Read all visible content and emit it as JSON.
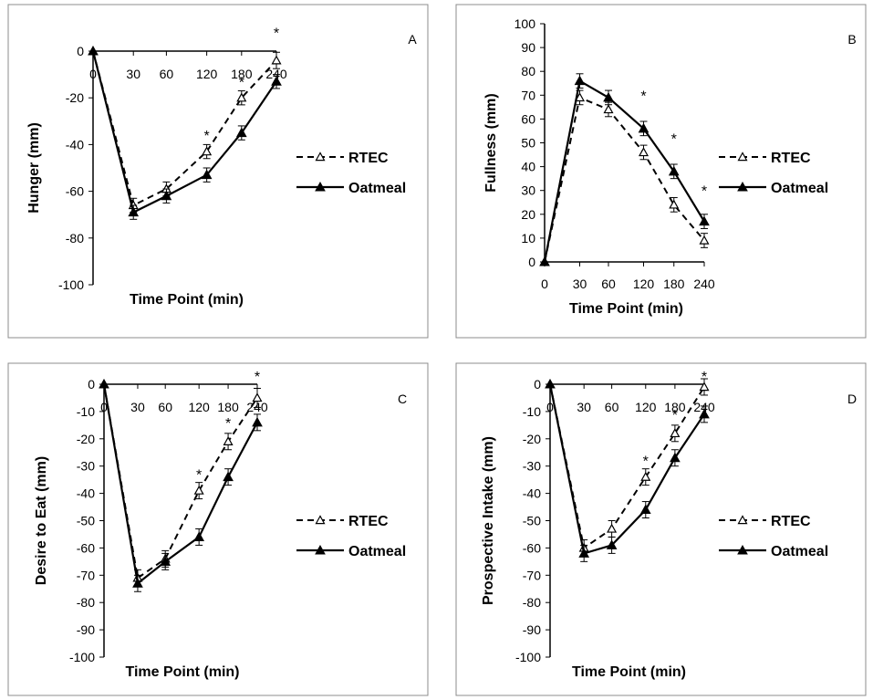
{
  "legend": {
    "rtec": "RTEC",
    "oatmeal": "Oatmeal"
  },
  "chart_data": [
    {
      "type": "line",
      "panel": "A",
      "title": "",
      "xlabel": "Time Point (min)",
      "ylabel": "Hunger (mm)",
      "categories": [
        "0",
        "30",
        "60",
        "120",
        "180",
        "240"
      ],
      "ylim": [
        -100,
        0
      ],
      "yticks": [
        0,
        -20,
        -40,
        -60,
        -80,
        -100
      ],
      "series": [
        {
          "name": "RTEC",
          "values": [
            0,
            -66,
            -59,
            -43,
            -20,
            -4
          ],
          "errors": [
            0,
            3,
            3,
            3,
            3,
            3.5
          ]
        },
        {
          "name": "Oatmeal",
          "values": [
            0,
            -69,
            -62,
            -53,
            -35,
            -13
          ],
          "errors": [
            0,
            3,
            3,
            3,
            3,
            3
          ]
        }
      ],
      "annotations": [
        {
          "x": "120",
          "y": -36,
          "text": "*"
        },
        {
          "x": "180",
          "y": -13,
          "text": "*"
        },
        {
          "x": "240",
          "y": 8,
          "text": "*"
        }
      ]
    },
    {
      "type": "line",
      "panel": "B",
      "title": "",
      "xlabel": "Time Point (min)",
      "ylabel": "Fullness (mm)",
      "categories": [
        "0",
        "30",
        "60",
        "120",
        "180",
        "240"
      ],
      "ylim": [
        0,
        100
      ],
      "yticks": [
        0,
        10,
        20,
        30,
        40,
        50,
        60,
        70,
        80,
        90,
        100
      ],
      "series": [
        {
          "name": "RTEC",
          "values": [
            0,
            69,
            64,
            46,
            24,
            9
          ],
          "errors": [
            0,
            3,
            3,
            3,
            3,
            3
          ]
        },
        {
          "name": "Oatmeal",
          "values": [
            0,
            76,
            69,
            56,
            38,
            17
          ],
          "errors": [
            0,
            3,
            3,
            3,
            3,
            3
          ]
        }
      ],
      "annotations": [
        {
          "x": "120",
          "y": 70,
          "text": "*"
        },
        {
          "x": "180",
          "y": 52,
          "text": "*"
        },
        {
          "x": "240",
          "y": 30,
          "text": "*"
        }
      ]
    },
    {
      "type": "line",
      "panel": "C",
      "title": "",
      "xlabel": "Time Point (min)",
      "ylabel": "Desire to Eat (mm)",
      "categories": [
        "0",
        "30",
        "60",
        "120",
        "180",
        "240"
      ],
      "ylim": [
        -100,
        0
      ],
      "yticks": [
        0,
        -10,
        -20,
        -30,
        -40,
        -50,
        -60,
        -70,
        -80,
        -90,
        -100
      ],
      "series": [
        {
          "name": "RTEC",
          "values": [
            0,
            -71,
            -64,
            -39,
            -21,
            -5
          ],
          "errors": [
            0,
            3,
            3,
            3,
            3,
            3.5
          ]
        },
        {
          "name": "Oatmeal",
          "values": [
            0,
            -73,
            -65,
            -56,
            -34,
            -14
          ],
          "errors": [
            0,
            3,
            3,
            3,
            3,
            3
          ]
        }
      ],
      "annotations": [
        {
          "x": "120",
          "y": -33,
          "text": "*"
        },
        {
          "x": "180",
          "y": -14,
          "text": "*"
        },
        {
          "x": "240",
          "y": 3,
          "text": "*"
        }
      ]
    },
    {
      "type": "line",
      "panel": "D",
      "title": "",
      "xlabel": "Time Point (min)",
      "ylabel": "Prospective Intake (mm)",
      "categories": [
        "0",
        "30",
        "60",
        "120",
        "180",
        "240"
      ],
      "ylim": [
        -100,
        0
      ],
      "yticks": [
        0,
        -10,
        -20,
        -30,
        -40,
        -50,
        -60,
        -70,
        -80,
        -90,
        -100
      ],
      "series": [
        {
          "name": "RTEC",
          "values": [
            0,
            -60,
            -53,
            -34,
            -18,
            -1
          ],
          "errors": [
            0,
            3,
            3,
            3,
            3,
            3
          ]
        },
        {
          "name": "Oatmeal",
          "values": [
            0,
            -62,
            -59,
            -46,
            -27,
            -11
          ],
          "errors": [
            0,
            3,
            3,
            3,
            3,
            3
          ]
        }
      ],
      "annotations": [
        {
          "x": "120",
          "y": -28,
          "text": "*"
        },
        {
          "x": "180",
          "y": -11,
          "text": "*"
        },
        {
          "x": "240",
          "y": 3,
          "text": "*"
        }
      ]
    }
  ]
}
